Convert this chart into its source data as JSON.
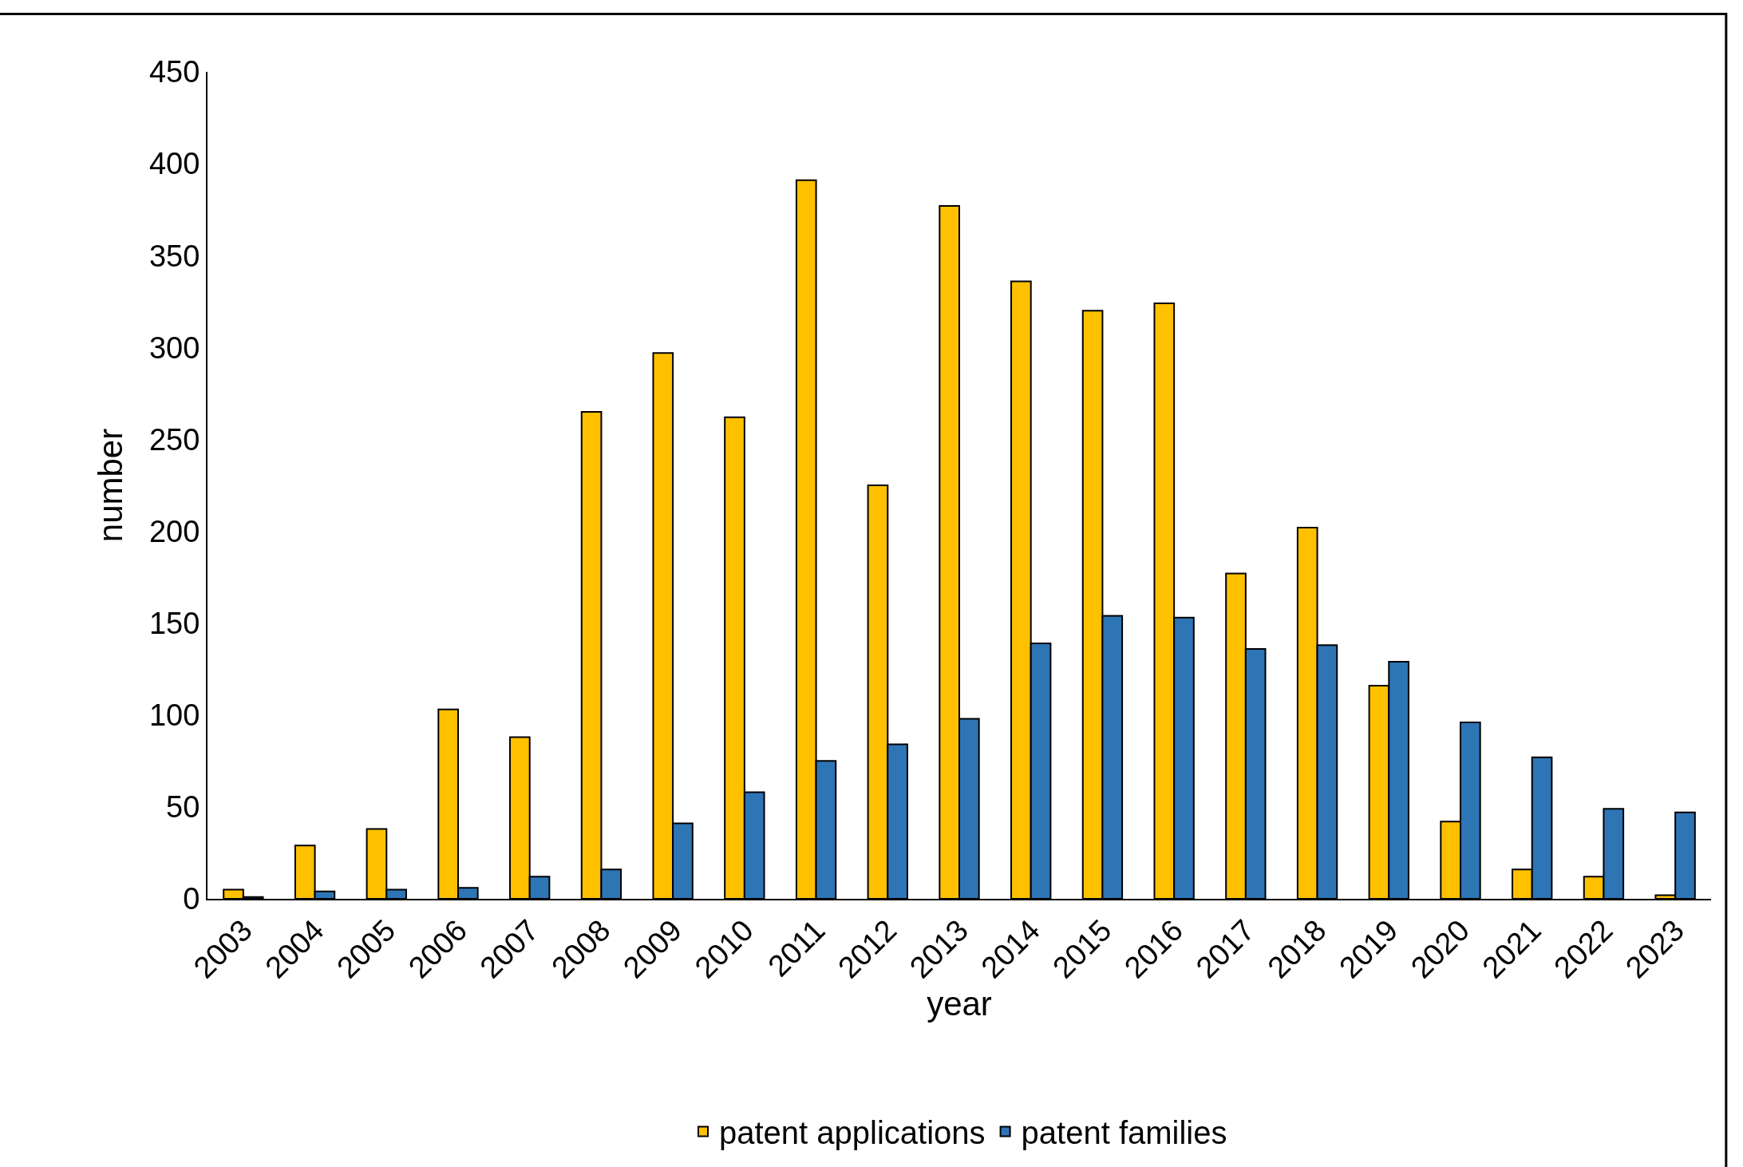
{
  "chart_data": {
    "type": "bar",
    "xlabel": "year",
    "ylabel": "number",
    "categories": [
      "2003",
      "2004",
      "2005",
      "2006",
      "2007",
      "2008",
      "2009",
      "2010",
      "2011",
      "2012",
      "2013",
      "2014",
      "2015",
      "2016",
      "2017",
      "2018",
      "2019",
      "2020",
      "2021",
      "2022",
      "2023"
    ],
    "series": [
      {
        "name": "patent applications",
        "color": "#ffc000",
        "values": [
          5,
          29,
          38,
          103,
          88,
          265,
          297,
          262,
          391,
          225,
          377,
          336,
          320,
          324,
          177,
          202,
          116,
          42,
          16,
          12,
          2
        ]
      },
      {
        "name": "patent families",
        "color": "#2e75b6",
        "values": [
          1,
          4,
          5,
          6,
          12,
          16,
          41,
          58,
          75,
          84,
          98,
          139,
          154,
          153,
          136,
          138,
          129,
          96,
          77,
          49,
          47
        ]
      }
    ],
    "ylim": [
      0,
      450
    ],
    "yticks": [
      0,
      50,
      100,
      150,
      200,
      250,
      300,
      350,
      400,
      450
    ],
    "grid": false,
    "legend": "bottom"
  }
}
